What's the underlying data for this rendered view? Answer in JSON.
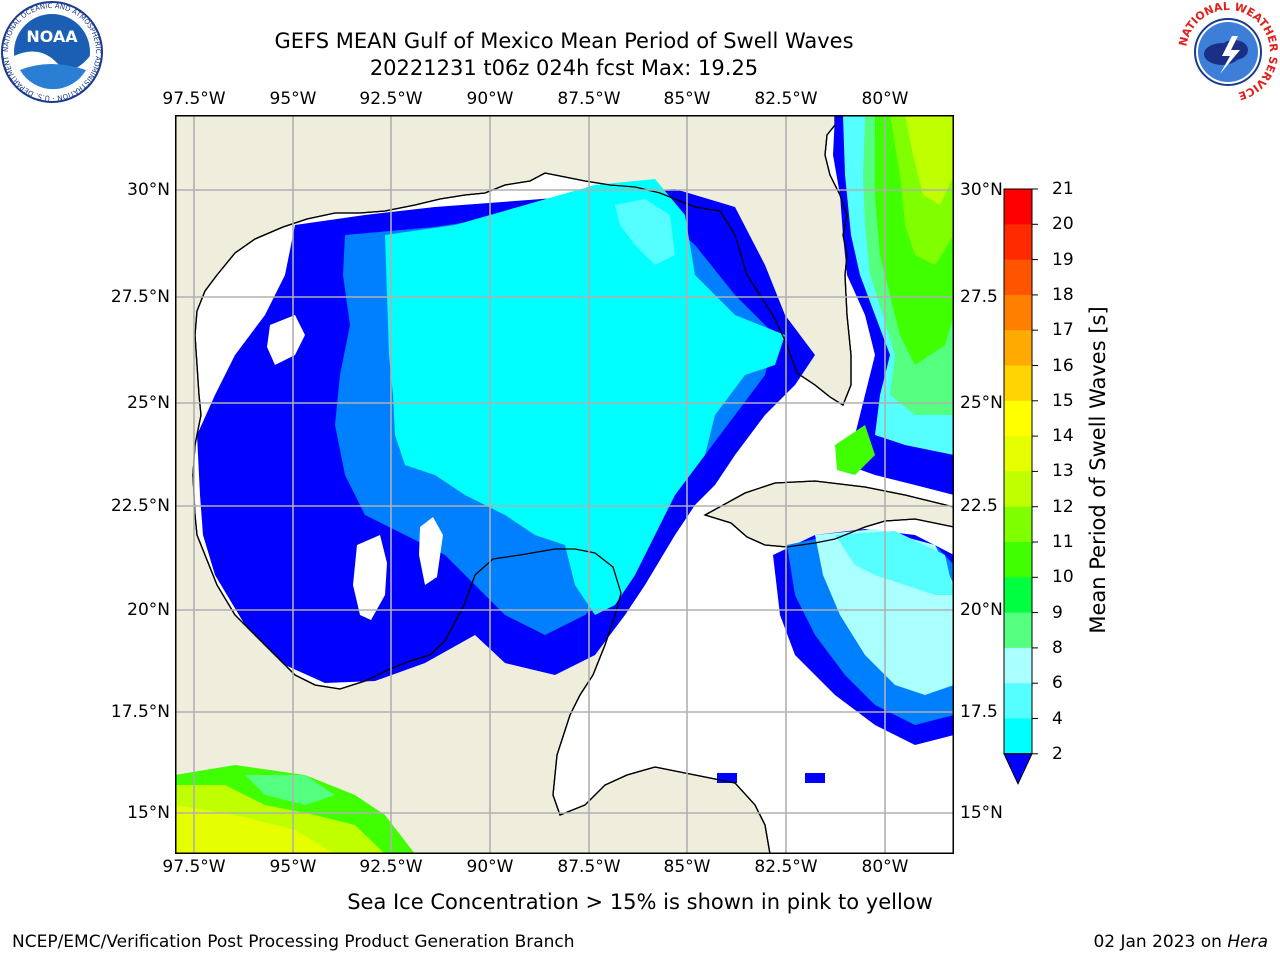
{
  "header": {
    "title_line1": "GEFS MEAN Gulf of Mexico Mean Period of Swell Waves",
    "title_line2": "20221231 t06z 024h fcst   Max: 19.25"
  },
  "map": {
    "lon_ticks": [
      "97.5°W",
      "95°W",
      "92.5°W",
      "90°W",
      "87.5°W",
      "85°W",
      "82.5°W",
      "80°W"
    ],
    "lat_ticks": [
      "30°N",
      "27.5°N",
      "25°N",
      "22.5°N",
      "20°N",
      "17.5°N",
      "15°N"
    ],
    "lat_ticks_right": [
      "30°N",
      "27.5",
      "25°N",
      "22.5",
      "20°N",
      "17.5",
      "15°N"
    ]
  },
  "colorbar": {
    "label": "Mean Period of Swell Waves [s]",
    "ticks": [
      "21",
      "20",
      "19",
      "18",
      "17",
      "16",
      "15",
      "14",
      "13",
      "12",
      "11",
      "10",
      "9",
      "8",
      "6",
      "4",
      "2"
    ],
    "colors": [
      "#ff0000",
      "#ff2a00",
      "#ff5500",
      "#ff7f00",
      "#ffaa00",
      "#ffd400",
      "#ffff00",
      "#e5ff00",
      "#bfff00",
      "#7fff00",
      "#3fff00",
      "#00ff3f",
      "#55ff7f",
      "#aaffff",
      "#55ffff",
      "#00ffff",
      "#0080ff",
      "#0000ff"
    ]
  },
  "footer": {
    "note": "Sea Ice Concentration > 15% is shown in pink to yellow",
    "left_credit": "NCEP/EMC/Verification Post Processing Product Generation Branch",
    "right_credit_prefix": "02 Jan 2023 on ",
    "right_credit_italic": "Hera"
  },
  "logos": {
    "left": "NOAA",
    "left_ring": "NATIONAL OCEANIC AND ATMOSPHERIC ADMINISTRATION · U.S. DEPARTMENT OF COMMERCE",
    "right_ring": "NATIONAL WEATHER SERVICE"
  }
}
